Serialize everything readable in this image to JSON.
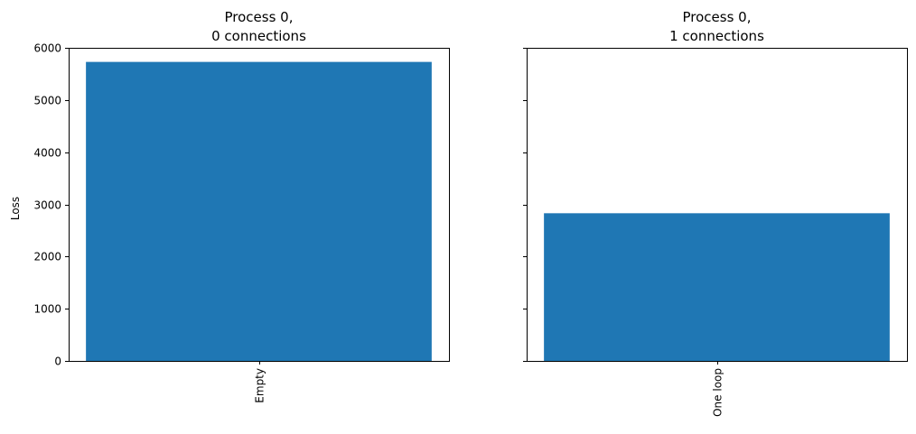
{
  "chart_data": [
    {
      "type": "bar",
      "title_lines": [
        "Process 0,",
        "0 connections"
      ],
      "categories": [
        "Empty"
      ],
      "values": [
        5730
      ],
      "ylabel": "Loss",
      "ylim": [
        0,
        6000
      ],
      "yticks": [
        0,
        1000,
        2000,
        3000,
        4000,
        5000,
        6000
      ],
      "bar_color": "#1f77b4",
      "grid": false
    },
    {
      "type": "bar",
      "title_lines": [
        "Process 0,",
        "1 connections"
      ],
      "categories": [
        "One loop"
      ],
      "values": [
        2830
      ],
      "ylabel": "",
      "ylim": [
        0,
        6000
      ],
      "yticks": [
        0,
        1000,
        2000,
        3000,
        4000,
        5000,
        6000
      ],
      "show_ytick_labels": false,
      "bar_color": "#1f77b4",
      "grid": false
    }
  ]
}
